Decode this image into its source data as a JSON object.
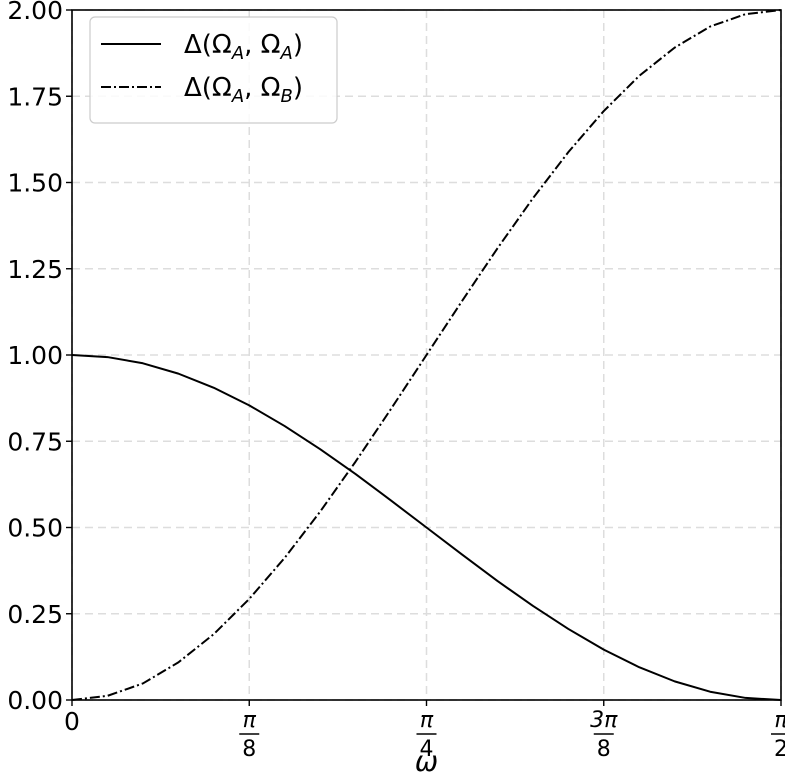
{
  "chart_data": {
    "type": "line",
    "xlabel": "ω",
    "ylabel": "",
    "xlim": [
      0,
      1.5707963
    ],
    "ylim": [
      0,
      2.0
    ],
    "grid": true,
    "legend_position": "top-left",
    "y_ticks": [
      "0.00",
      "0.25",
      "0.50",
      "0.75",
      "1.00",
      "1.25",
      "1.50",
      "1.75",
      "2.00"
    ],
    "x_ticks": [
      {
        "value": 0,
        "label": "0"
      },
      {
        "value": 0.3926991,
        "num": "π",
        "den": "8"
      },
      {
        "value": 0.7853982,
        "num": "π",
        "den": "4"
      },
      {
        "value": 1.1780972,
        "num": "3π",
        "den": "8"
      },
      {
        "value": 1.5707963,
        "num": "π",
        "den": "2"
      }
    ],
    "series": [
      {
        "name": "Δ(Ω_A, Ω_A)",
        "line_style": "solid",
        "color": "#000000",
        "x": [
          0,
          0.0785,
          0.1571,
          0.2356,
          0.3142,
          0.3927,
          0.4712,
          0.5498,
          0.6283,
          0.7069,
          0.7854,
          0.8639,
          0.9425,
          1.021,
          1.0996,
          1.1781,
          1.2566,
          1.3352,
          1.4137,
          1.4923,
          1.5708
        ],
        "y": [
          1.0,
          0.994,
          0.976,
          0.946,
          0.905,
          0.854,
          0.794,
          0.727,
          0.655,
          0.578,
          0.5,
          0.422,
          0.345,
          0.273,
          0.206,
          0.146,
          0.095,
          0.054,
          0.024,
          0.006,
          0.0
        ]
      },
      {
        "name": "Δ(Ω_A, Ω_B)",
        "line_style": "dashdot",
        "color": "#000000",
        "x": [
          0,
          0.0785,
          0.1571,
          0.2356,
          0.3142,
          0.3927,
          0.4712,
          0.5498,
          0.6283,
          0.7069,
          0.7854,
          0.8639,
          0.9425,
          1.021,
          1.0996,
          1.1781,
          1.2566,
          1.3352,
          1.4137,
          1.4923,
          1.5708
        ],
        "y": [
          0.0,
          0.012,
          0.048,
          0.109,
          0.191,
          0.293,
          0.412,
          0.546,
          0.691,
          0.844,
          1.0,
          1.156,
          1.309,
          1.454,
          1.588,
          1.707,
          1.809,
          1.891,
          1.952,
          1.988,
          2.0
        ]
      }
    ]
  }
}
